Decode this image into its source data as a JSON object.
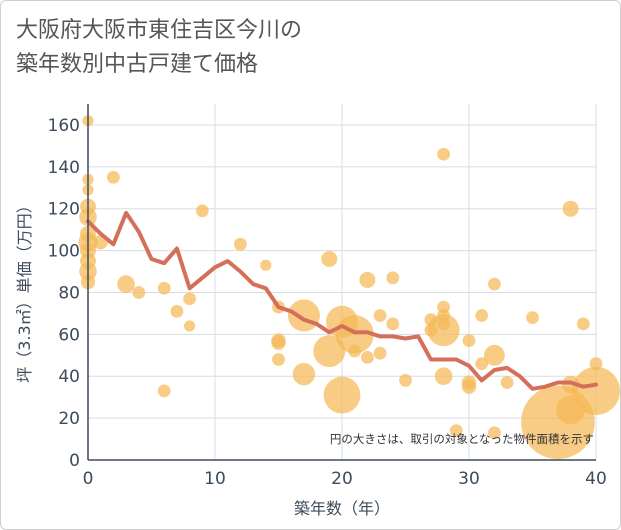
{
  "chart_data": {
    "type": "scatter",
    "title_line1": "大阪府大阪市東住吉区今川の",
    "title_line2": "築年数別中古戸建て価格",
    "xlabel": "築年数（年）",
    "ylabel": "坪（3.3㎡）単価（万円）",
    "xlim": [
      0,
      40
    ],
    "ylim": [
      0,
      170
    ],
    "x_ticks": [
      0,
      10,
      20,
      30,
      40
    ],
    "y_ticks": [
      0,
      20,
      40,
      60,
      80,
      100,
      120,
      140,
      160
    ],
    "grid": true,
    "note": "円の大きさは、取引の対象となった物件面積を示す",
    "colors": {
      "bubble": "#f5b955",
      "line": "#d4705a",
      "grid": "#d7dde6",
      "axis": "#3d4b5c"
    },
    "series": [
      {
        "kind": "bubble",
        "points": [
          {
            "x": 0,
            "y": 162,
            "s": 0.7
          },
          {
            "x": 0,
            "y": 134,
            "s": 0.7
          },
          {
            "x": 0,
            "y": 129,
            "s": 0.7
          },
          {
            "x": 0,
            "y": 121,
            "s": 1.0
          },
          {
            "x": 0,
            "y": 116,
            "s": 1.1
          },
          {
            "x": 0,
            "y": 108,
            "s": 1.0
          },
          {
            "x": 0,
            "y": 104,
            "s": 1.2
          },
          {
            "x": 0,
            "y": 100,
            "s": 1.0
          },
          {
            "x": 0,
            "y": 95,
            "s": 1.0
          },
          {
            "x": 0,
            "y": 90,
            "s": 1.1
          },
          {
            "x": 0,
            "y": 85,
            "s": 0.9
          },
          {
            "x": 1,
            "y": 104,
            "s": 0.9
          },
          {
            "x": 2,
            "y": 135,
            "s": 0.8
          },
          {
            "x": 3,
            "y": 84,
            "s": 1.1
          },
          {
            "x": 4,
            "y": 80,
            "s": 0.8
          },
          {
            "x": 6,
            "y": 82,
            "s": 0.8
          },
          {
            "x": 6,
            "y": 33,
            "s": 0.8
          },
          {
            "x": 7,
            "y": 71,
            "s": 0.8
          },
          {
            "x": 8,
            "y": 77,
            "s": 0.8
          },
          {
            "x": 8,
            "y": 64,
            "s": 0.7
          },
          {
            "x": 9,
            "y": 119,
            "s": 0.8
          },
          {
            "x": 12,
            "y": 103,
            "s": 0.8
          },
          {
            "x": 14,
            "y": 93,
            "s": 0.7
          },
          {
            "x": 15,
            "y": 73,
            "s": 0.8
          },
          {
            "x": 15,
            "y": 57,
            "s": 0.9
          },
          {
            "x": 15,
            "y": 56,
            "s": 0.9
          },
          {
            "x": 15,
            "y": 48,
            "s": 0.8
          },
          {
            "x": 17,
            "y": 69,
            "s": 2.0
          },
          {
            "x": 17,
            "y": 41,
            "s": 1.4
          },
          {
            "x": 19,
            "y": 96,
            "s": 1.0
          },
          {
            "x": 19,
            "y": 52,
            "s": 2.0
          },
          {
            "x": 20,
            "y": 66,
            "s": 2.0
          },
          {
            "x": 20,
            "y": 31,
            "s": 2.3
          },
          {
            "x": 21,
            "y": 60,
            "s": 2.4
          },
          {
            "x": 21,
            "y": 52,
            "s": 0.8
          },
          {
            "x": 22,
            "y": 86,
            "s": 1.0
          },
          {
            "x": 22,
            "y": 49,
            "s": 0.8
          },
          {
            "x": 23,
            "y": 69,
            "s": 0.8
          },
          {
            "x": 23,
            "y": 51,
            "s": 0.8
          },
          {
            "x": 24,
            "y": 87,
            "s": 0.8
          },
          {
            "x": 24,
            "y": 65,
            "s": 0.8
          },
          {
            "x": 25,
            "y": 38,
            "s": 0.8
          },
          {
            "x": 27,
            "y": 67,
            "s": 0.8
          },
          {
            "x": 27,
            "y": 62,
            "s": 0.8
          },
          {
            "x": 28,
            "y": 146,
            "s": 0.8
          },
          {
            "x": 28,
            "y": 73,
            "s": 0.8
          },
          {
            "x": 28,
            "y": 69,
            "s": 0.8
          },
          {
            "x": 28,
            "y": 65,
            "s": 0.8
          },
          {
            "x": 28,
            "y": 62,
            "s": 2.0
          },
          {
            "x": 28,
            "y": 40,
            "s": 1.1
          },
          {
            "x": 29,
            "y": 14,
            "s": 0.8
          },
          {
            "x": 30,
            "y": 57,
            "s": 0.8
          },
          {
            "x": 30,
            "y": 37,
            "s": 0.9
          },
          {
            "x": 30,
            "y": 35,
            "s": 0.9
          },
          {
            "x": 31,
            "y": 69,
            "s": 0.8
          },
          {
            "x": 31,
            "y": 46,
            "s": 0.8
          },
          {
            "x": 32,
            "y": 84,
            "s": 0.8
          },
          {
            "x": 32,
            "y": 50,
            "s": 1.3
          },
          {
            "x": 32,
            "y": 13,
            "s": 0.8
          },
          {
            "x": 33,
            "y": 37,
            "s": 0.8
          },
          {
            "x": 35,
            "y": 68,
            "s": 0.8
          },
          {
            "x": 37,
            "y": 18,
            "s": 4.6
          },
          {
            "x": 38,
            "y": 120,
            "s": 1.0
          },
          {
            "x": 38,
            "y": 36,
            "s": 1.1
          },
          {
            "x": 38,
            "y": 24,
            "s": 1.8
          },
          {
            "x": 39,
            "y": 65,
            "s": 0.8
          },
          {
            "x": 40,
            "y": 33,
            "s": 3.0
          },
          {
            "x": 40,
            "y": 46,
            "s": 0.8
          }
        ]
      },
      {
        "kind": "line",
        "x": [
          0,
          1,
          2,
          3,
          4,
          5,
          6,
          7,
          8,
          9,
          10,
          11,
          12,
          13,
          14,
          15,
          16,
          17,
          18,
          19,
          20,
          21,
          22,
          23,
          24,
          25,
          26,
          27,
          28,
          29,
          30,
          31,
          32,
          33,
          34,
          35,
          36,
          37,
          38,
          39,
          40
        ],
        "y": [
          114,
          108,
          103,
          118,
          109,
          96,
          94,
          101,
          82,
          87,
          92,
          95,
          90,
          84,
          82,
          73,
          71,
          67,
          65,
          61,
          64,
          61,
          61,
          59,
          59,
          58,
          59,
          48,
          48,
          48,
          45,
          38,
          43,
          44,
          40,
          34,
          35,
          37,
          37,
          35,
          36
        ]
      }
    ]
  }
}
